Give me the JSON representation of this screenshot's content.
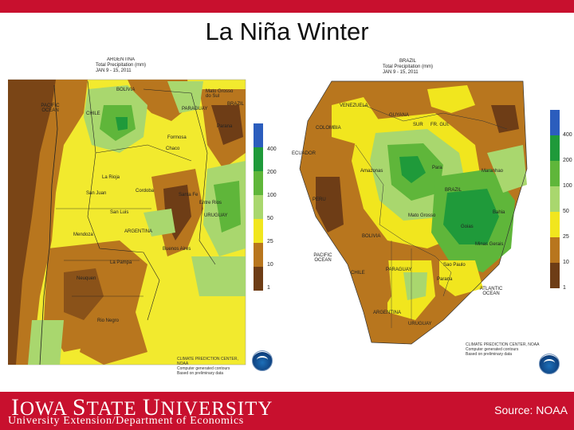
{
  "slide": {
    "title": "La Niña Winter"
  },
  "map_argentina": {
    "header": [
      "ARGENTINA",
      "Total Precipitation (mm)",
      "JAN 9 - 15, 2011"
    ],
    "labels": {
      "pacific": "PACIFIC OCEAN",
      "bolivia": "BOLIVIA",
      "paraguay": "PARAGUAY",
      "brazil": "BRAZIL",
      "chile": "CHILE",
      "uruguay": "URUGUAY",
      "argentina": "ARGENTINA",
      "mato_grosso": "Mato Grosso do Sul",
      "parana": "Parana",
      "formosa": "Formosa",
      "chaco": "Chaco",
      "la_rioja": "La Rioja",
      "san_juan": "San Juan",
      "cordoba": "Cordoba",
      "san_luis": "San Luis",
      "mendoza": "Mendoza",
      "la_pampa": "La Pampa",
      "neuquen": "Neuquen",
      "rio_negro": "Rio Negro",
      "buenos_aires": "Buenos Aires",
      "santa_fe": "Santa Fe",
      "entre_rios": "Entre Rios"
    },
    "footer": [
      "CLIMATE PREDICTION CENTER, NOAA",
      "Computer generated contours",
      "Based on preliminary data"
    ]
  },
  "map_brazil": {
    "header": [
      "BRAZIL",
      "Total Precipitation (mm)",
      "JAN 9 - 15, 2011"
    ],
    "labels": {
      "venezuela": "VENEZUELA",
      "guyana": "GUYANA",
      "surinam": "SUR",
      "fr_guiana": "FR. GUI.",
      "colombia": "COLOMBIA",
      "ecuador": "ECUADOR",
      "peru": "PERU",
      "brazil": "BRAZIL",
      "bolivia": "BOLIVIA",
      "pacific": "PACIFIC OCEAN",
      "atlantic": "ATLANTIC OCEAN",
      "paraguay": "PARAGUAY",
      "chile": "CHILE",
      "argentina": "ARGENTINA",
      "uruguay": "URUGUAY",
      "amazonas": "Amazonas",
      "para": "Para",
      "maranhao": "Maranhao",
      "mato_grosso": "Mato Grosso",
      "goias": "Goias",
      "bahia": "Bahia",
      "minas_gerais": "Minas Gerais",
      "sao_paulo": "Sao Paulo",
      "parana": "Parana"
    },
    "footer": [
      "CLIMATE PREDICTION CENTER, NOAA",
      "Computer generated contours",
      "Based on preliminary data"
    ]
  },
  "legend": {
    "labels": [
      "400",
      "200",
      "100",
      "50",
      "25",
      "10",
      "1"
    ],
    "colors": [
      "#2b5dbd",
      "#1f9a3a",
      "#5fb63a",
      "#a9d76e",
      "#f1e61e",
      "#b8761e",
      "#6e3d16"
    ]
  },
  "footer": {
    "university_part1": "I",
    "university_part2": "OWA ",
    "university_part3": "S",
    "university_part4": "TATE ",
    "university_part5": "U",
    "university_part6": "NIVERSITY",
    "department": "University Extension/Department of Economics",
    "source": "Source: NOAA"
  },
  "colors": {
    "brand_red": "#c8102e"
  }
}
